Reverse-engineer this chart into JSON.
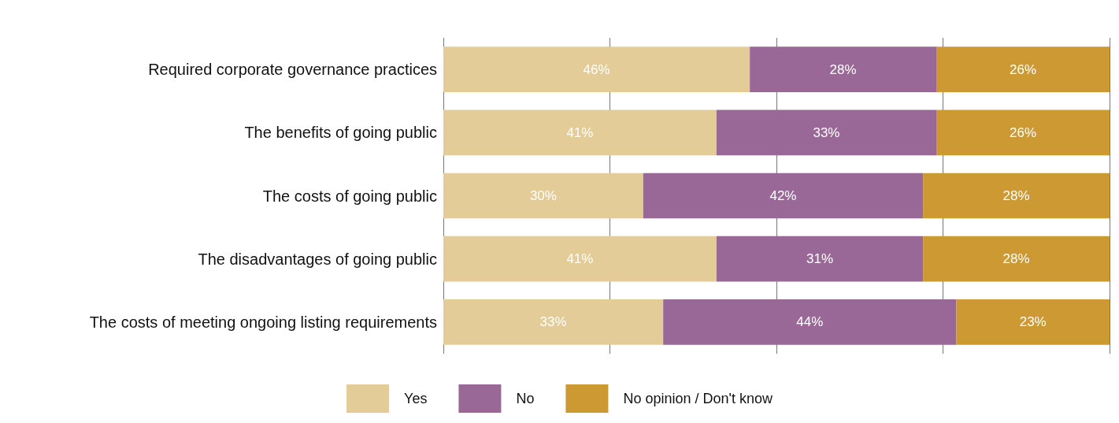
{
  "chart_data": {
    "type": "bar",
    "orientation": "horizontal",
    "stacked": true,
    "categories": [
      "Required corporate governance practices",
      "The benefits of going public",
      "The costs of going public",
      "The disadvantages of going public",
      "The costs of meeting ongoing listing requirements"
    ],
    "series": [
      {
        "name": "Yes",
        "color": "#e4cc99",
        "values": [
          46,
          41,
          30,
          41,
          33
        ],
        "value_labels": [
          "46%",
          "41%",
          "30%",
          "41%",
          "33%"
        ]
      },
      {
        "name": "No",
        "color": "#9a6896",
        "values": [
          28,
          33,
          42,
          31,
          44
        ],
        "value_labels": [
          "28%",
          "33%",
          "42%",
          "31%",
          "44%"
        ]
      },
      {
        "name": "No opinion / Don't know",
        "color": "#cc9933",
        "values": [
          26,
          26,
          28,
          28,
          23
        ],
        "value_labels": [
          "26%",
          "26%",
          "28%",
          "28%",
          "23%"
        ]
      }
    ],
    "xlim": [
      0,
      100
    ],
    "xticks": [
      {
        "value": 0,
        "label": null
      },
      {
        "value": 25,
        "label": null
      },
      {
        "value": 50,
        "label": null
      },
      {
        "value": 75,
        "label": null
      },
      {
        "value": 100,
        "label": null
      }
    ],
    "tick_labels": "y",
    "grid": "x",
    "legend": "bottom"
  }
}
